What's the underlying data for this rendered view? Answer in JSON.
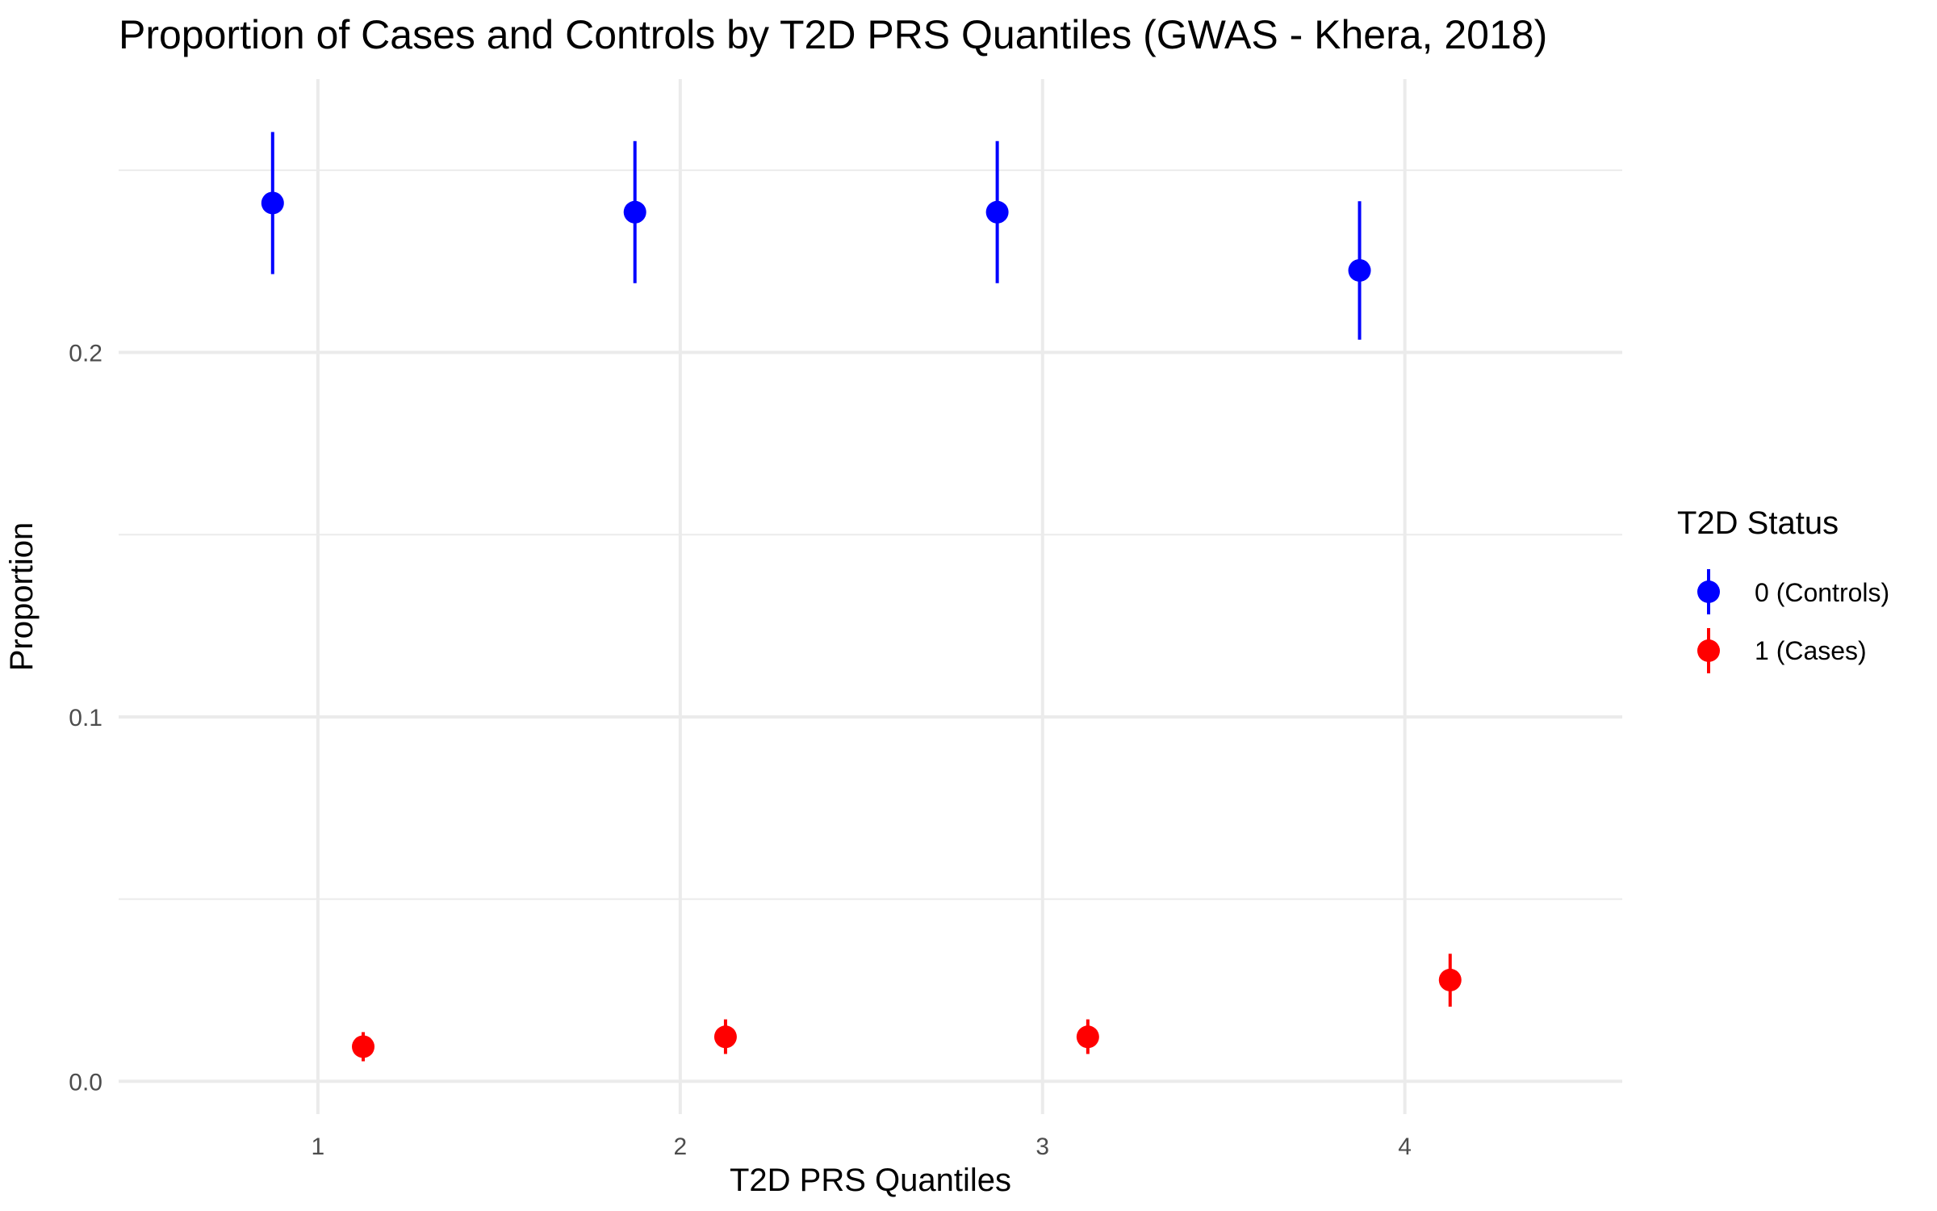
{
  "chart_data": {
    "type": "scatter",
    "title": "Proportion of Cases and Controls by T2D PRS Quantiles (GWAS - Khera, 2018)",
    "xlabel": "T2D PRS Quantiles",
    "ylabel": "Proportion",
    "x_ticks": [
      "1",
      "2",
      "3",
      "4"
    ],
    "y_ticks": [
      "0.0",
      "0.1",
      "0.2"
    ],
    "ylim": [
      -0.009,
      0.275
    ],
    "xlim": [
      0.45,
      4.6
    ],
    "grid": true,
    "legend": {
      "title": "T2D Status",
      "position": "right"
    },
    "series": [
      {
        "name": "0 (Controls)",
        "color": "#0000ff",
        "x": [
          1,
          2,
          3,
          4
        ],
        "y": [
          0.241,
          0.2385,
          0.2385,
          0.2225
        ],
        "ymin": [
          0.2215,
          0.219,
          0.219,
          0.2035
        ],
        "ymax": [
          0.2605,
          0.258,
          0.258,
          0.2415
        ]
      },
      {
        "name": "1 (Cases)",
        "color": "#ff0000",
        "x": [
          1,
          2,
          3,
          4
        ],
        "y": [
          0.0095,
          0.0122,
          0.0122,
          0.0278
        ],
        "ymin": [
          0.0055,
          0.0075,
          0.0075,
          0.0205
        ],
        "ymax": [
          0.0135,
          0.017,
          0.017,
          0.035
        ]
      }
    ]
  }
}
